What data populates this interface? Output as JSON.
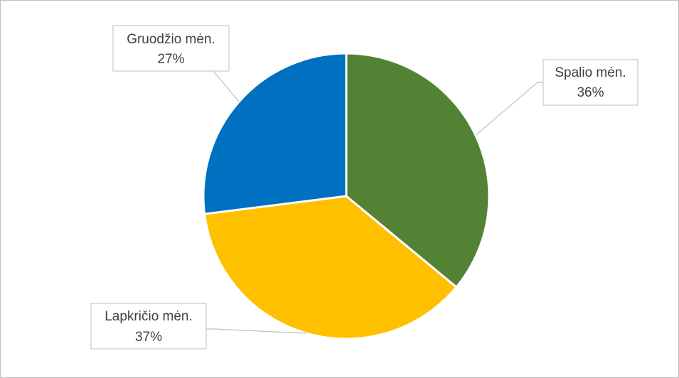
{
  "chart_data": {
    "type": "pie",
    "title": "",
    "slices": [
      {
        "label": "Spalio mėn.",
        "value": 36,
        "value_label": "36%",
        "color": "#548235"
      },
      {
        "label": "Lapkričio mėn.",
        "value": 37,
        "value_label": "37%",
        "color": "#ffc000"
      },
      {
        "label": "Gruodžio mėn.",
        "value": 27,
        "value_label": "27%",
        "color": "#0070c0"
      }
    ],
    "start_angle": "top (12 o'clock)",
    "direction": "clockwise",
    "legend": "none",
    "data_labels": "callouts with leader lines"
  }
}
